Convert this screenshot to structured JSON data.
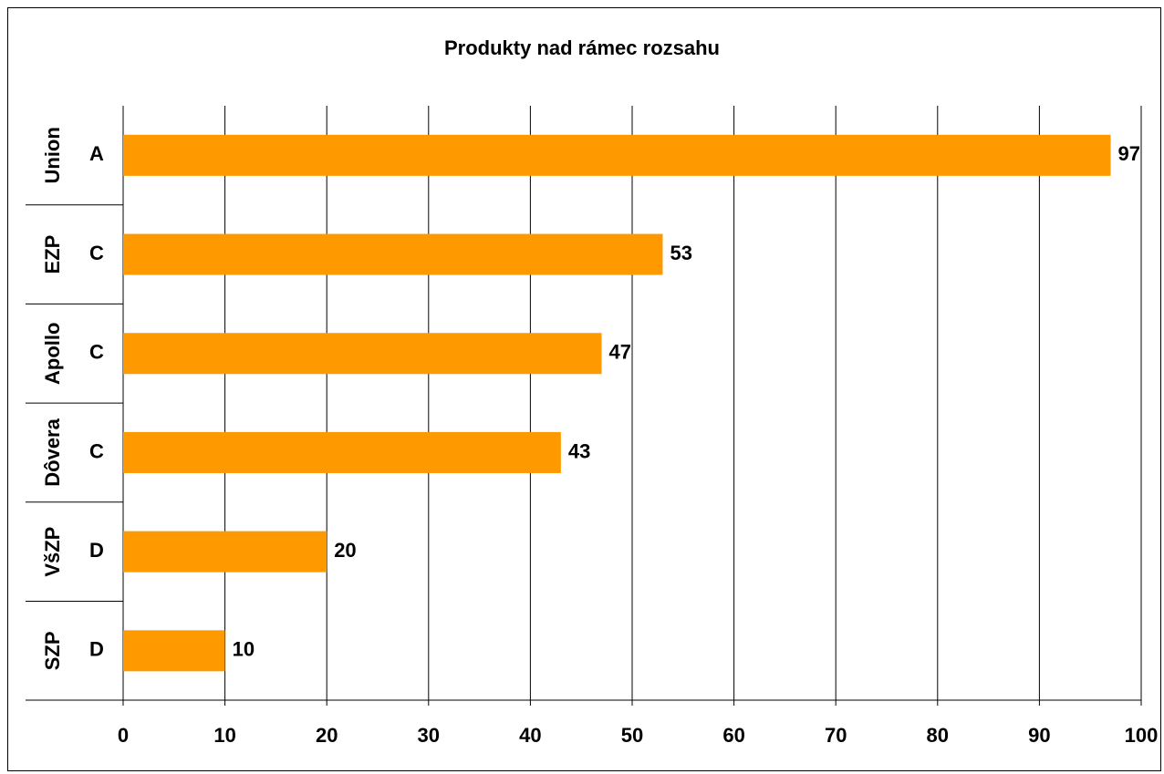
{
  "chart_data": {
    "type": "bar",
    "orientation": "horizontal",
    "title": "Produkty nad rámec rozsahu",
    "categories": [
      "Union",
      "EZP",
      "Apollo",
      "Dôvera",
      "VšZP",
      "SZP"
    ],
    "subcategories": [
      "A",
      "C",
      "C",
      "C",
      "D",
      "D"
    ],
    "series": [
      {
        "values": [
          97,
          53,
          47,
          43,
          20,
          10
        ]
      }
    ],
    "data_labels": [
      "97",
      "53",
      "47",
      "43",
      "20",
      "10"
    ],
    "xlim": [
      0,
      100
    ],
    "x_ticks": [
      "0",
      "10",
      "20",
      "30",
      "40",
      "50",
      "60",
      "70",
      "80",
      "90",
      "100"
    ],
    "grid": "vertical",
    "legend": "none",
    "colors": {
      "bar": "#FF9900",
      "grid": "#000000",
      "text": "#000000"
    }
  }
}
